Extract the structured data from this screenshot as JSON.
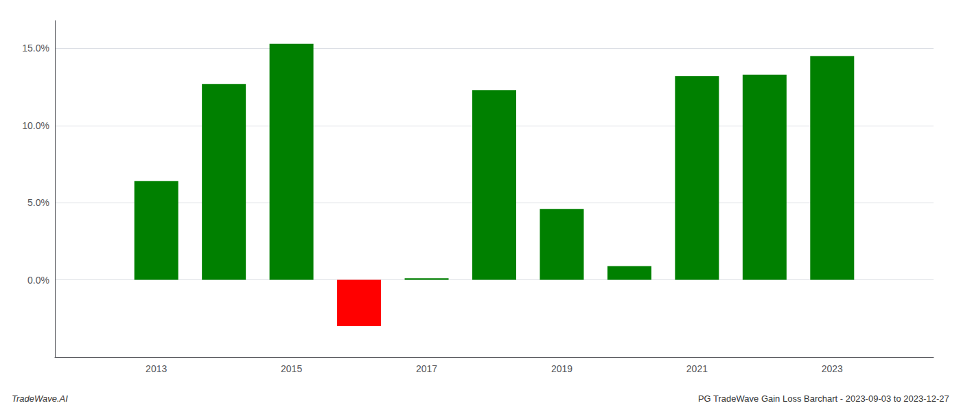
{
  "chart_data": {
    "type": "bar",
    "title": "PG TradeWave Gain Loss Barchart - 2023-09-03 to 2023-12-27",
    "annotations": [
      "TradeWave.AI"
    ],
    "x": [
      2013,
      2014,
      2015,
      2016,
      2017,
      2018,
      2019,
      2020,
      2021,
      2022,
      2023
    ],
    "values": [
      0.064,
      0.127,
      0.153,
      -0.03,
      0.001,
      0.123,
      0.046,
      0.009,
      0.132,
      0.133,
      0.145
    ],
    "colors": [
      "#008000",
      "#008000",
      "#008000",
      "#ff0000",
      "#008000",
      "#008000",
      "#008000",
      "#008000",
      "#008000",
      "#008000",
      "#008000"
    ],
    "xlim": [
      2011.5,
      2024.5
    ],
    "xticks": [
      2013,
      2015,
      2017,
      2019,
      2021,
      2023
    ],
    "ylim": [
      -0.05,
      0.168
    ],
    "yticks": [
      {
        "value": 0.0,
        "label": "0.0%"
      },
      {
        "value": 0.05,
        "label": "5.0%"
      },
      {
        "value": 0.1,
        "label": "10.0%"
      },
      {
        "value": 0.15,
        "label": "15.0%"
      }
    ],
    "grid": true
  }
}
